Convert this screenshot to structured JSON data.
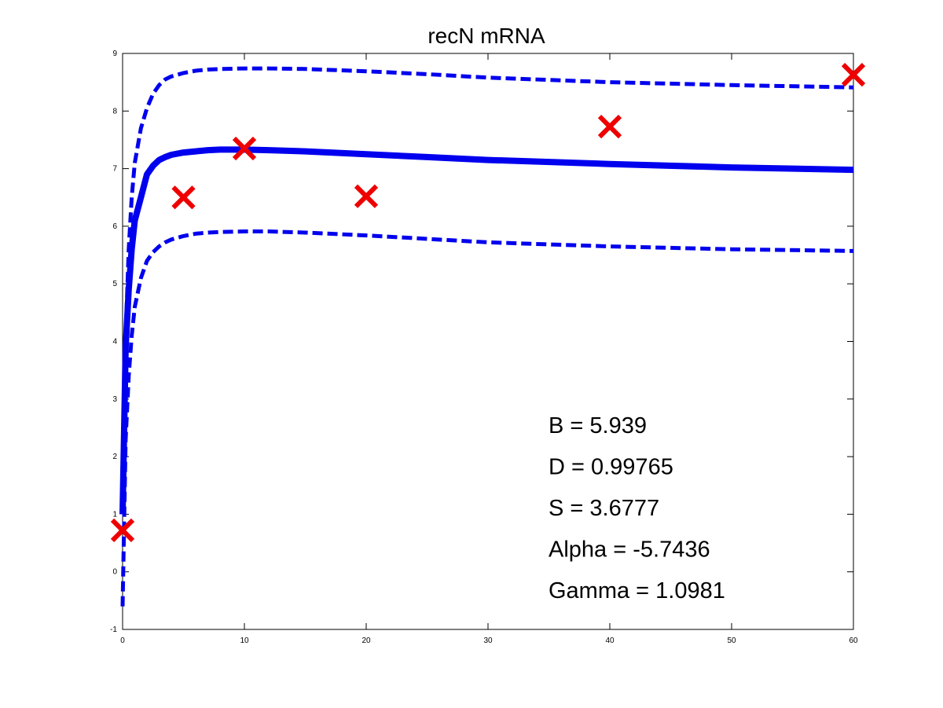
{
  "chart_data": {
    "type": "line",
    "title": "recN mRNA",
    "xlabel": "",
    "ylabel": "",
    "xlim": [
      0,
      60
    ],
    "ylim": [
      -1,
      9
    ],
    "xticks": [
      0,
      10,
      20,
      30,
      40,
      50,
      60
    ],
    "yticks": [
      -1,
      0,
      1,
      2,
      3,
      4,
      5,
      6,
      7,
      8,
      9
    ],
    "grid": false,
    "line_color": "#0000ee",
    "marker_color": "#ee0000",
    "series": [
      {
        "style": "solid",
        "x": [
          0,
          0.25,
          0.5,
          0.75,
          1,
          1.5,
          2,
          2.5,
          3,
          3.5,
          4,
          5,
          6,
          7,
          8,
          10,
          12,
          15,
          20,
          25,
          30,
          40,
          50,
          60
        ],
        "y": [
          1.0,
          3.9,
          4.9,
          5.6,
          6.1,
          6.5,
          6.9,
          7.05,
          7.15,
          7.2,
          7.24,
          7.28,
          7.3,
          7.32,
          7.33,
          7.33,
          7.32,
          7.3,
          7.25,
          7.2,
          7.15,
          7.08,
          7.02,
          6.98
        ]
      },
      {
        "style": "dashed",
        "x": [
          0,
          0.25,
          0.5,
          0.75,
          1,
          1.5,
          2,
          2.5,
          3,
          3.5,
          4,
          5,
          6,
          7,
          8,
          10,
          12,
          15,
          20,
          25,
          30,
          40,
          50,
          60
        ],
        "y": [
          1.4,
          4.1,
          5.6,
          6.5,
          7.1,
          7.7,
          8.05,
          8.3,
          8.45,
          8.55,
          8.6,
          8.66,
          8.7,
          8.72,
          8.73,
          8.74,
          8.74,
          8.73,
          8.69,
          8.64,
          8.58,
          8.5,
          8.45,
          8.41
        ]
      },
      {
        "style": "dashed",
        "x": [
          0,
          0.25,
          0.5,
          0.75,
          1,
          1.5,
          2,
          2.5,
          3,
          3.5,
          4,
          5,
          6,
          7,
          8,
          10,
          12,
          15,
          20,
          25,
          30,
          40,
          50,
          60
        ],
        "y": [
          -0.6,
          2.3,
          3.4,
          4.1,
          4.6,
          5.1,
          5.4,
          5.55,
          5.65,
          5.72,
          5.77,
          5.83,
          5.87,
          5.89,
          5.9,
          5.91,
          5.91,
          5.89,
          5.84,
          5.78,
          5.72,
          5.65,
          5.6,
          5.57
        ]
      }
    ],
    "markers": {
      "shape": "x",
      "x": [
        0,
        5,
        10,
        20,
        40,
        60
      ],
      "y": [
        0.72,
        6.5,
        7.35,
        6.52,
        7.73,
        8.63
      ]
    },
    "annotations": [
      "B = 5.939",
      "D = 0.99765",
      "S = 3.6777",
      "Alpha = -5.7436",
      "Gamma = 1.0981"
    ]
  }
}
